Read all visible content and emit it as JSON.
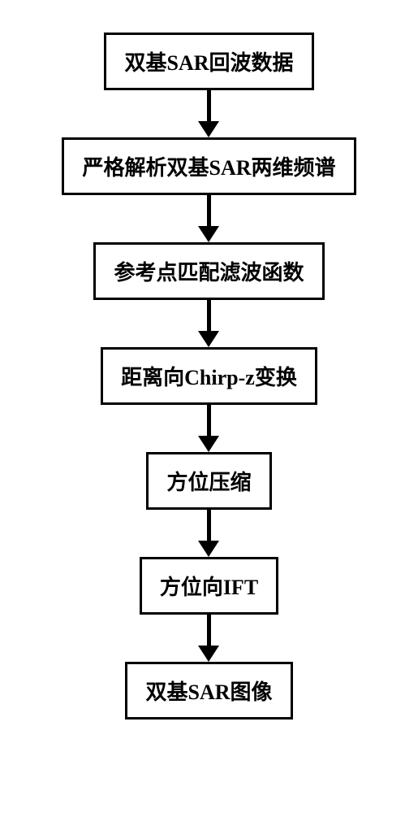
{
  "flowchart": {
    "nodes": [
      {
        "label": "双基SAR回波数据"
      },
      {
        "label": "严格解析双基SAR两维频谱"
      },
      {
        "label": "参考点匹配滤波函数"
      },
      {
        "label": "距离向Chirp-z变换"
      },
      {
        "label": "方位压缩"
      },
      {
        "label": "方位向IFT"
      },
      {
        "label": "双基SAR图像"
      }
    ],
    "styling": {
      "node_border_color": "#000000",
      "node_border_width": 3,
      "node_background": "#ffffff",
      "node_font_size": 26,
      "node_font_weight": "bold",
      "arrow_color": "#000000",
      "arrow_line_width": 5,
      "arrow_head_width": 26,
      "arrow_head_height": 20,
      "arrow_total_height": 58,
      "page_background": "#ffffff",
      "text_color": "#000000"
    }
  }
}
